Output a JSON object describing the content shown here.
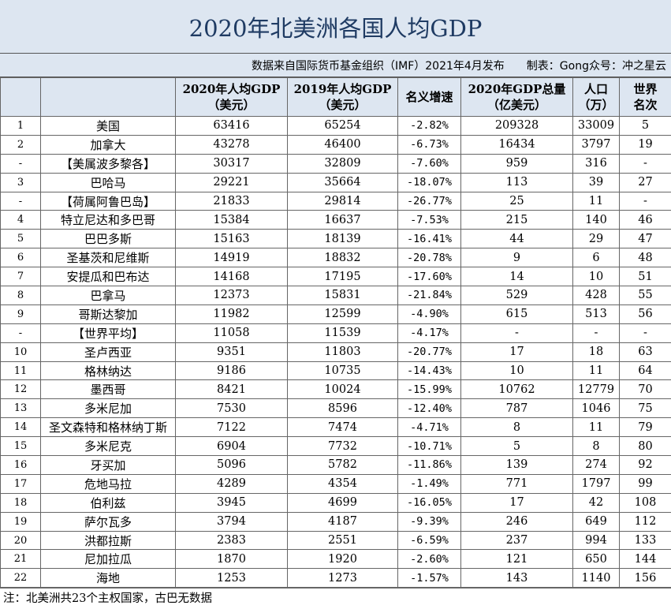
{
  "title": "2020年北美洲各国人均GDP",
  "subtitle": "数据来自国际货币基金组织（IMF）2021年4月发布　　制表：Gong众号：冲之星云",
  "headers": [
    [
      "",
      ""
    ],
    [
      "",
      ""
    ],
    [
      "2020年人均GDP",
      "（美元）"
    ],
    [
      "2019年人均GDP",
      "（美元）"
    ],
    [
      "名义增速",
      ""
    ],
    [
      "2020年GDP总量",
      "（亿美元）"
    ],
    [
      "人口",
      "（万）"
    ],
    [
      "世界",
      "名次"
    ]
  ],
  "rows": [
    [
      "1",
      "美国",
      "63416",
      "65254",
      "-2.82%",
      "209328",
      "33009",
      "5"
    ],
    [
      "2",
      "加拿大",
      "43278",
      "46400",
      "-6.73%",
      "16434",
      "3797",
      "19"
    ],
    [
      "-",
      "【美属波多黎各】",
      "30317",
      "32809",
      "-7.60%",
      "959",
      "316",
      "-"
    ],
    [
      "3",
      "巴哈马",
      "29221",
      "35664",
      "-18.07%",
      "113",
      "39",
      "27"
    ],
    [
      "-",
      "【荷属阿鲁巴岛】",
      "21833",
      "29814",
      "-26.77%",
      "25",
      "11",
      "-"
    ],
    [
      "4",
      "特立尼达和多巴哥",
      "15384",
      "16637",
      "-7.53%",
      "215",
      "140",
      "46"
    ],
    [
      "5",
      "巴巴多斯",
      "15163",
      "18139",
      "-16.41%",
      "44",
      "29",
      "47"
    ],
    [
      "6",
      "圣基茨和尼维斯",
      "14919",
      "18832",
      "-20.78%",
      "9",
      "6",
      "48"
    ],
    [
      "7",
      "安提瓜和巴布达",
      "14168",
      "17195",
      "-17.60%",
      "14",
      "10",
      "51"
    ],
    [
      "8",
      "巴拿马",
      "12373",
      "15831",
      "-21.84%",
      "529",
      "428",
      "55"
    ],
    [
      "9",
      "哥斯达黎加",
      "11982",
      "12599",
      "-4.90%",
      "615",
      "513",
      "56"
    ],
    [
      "-",
      "【世界平均】",
      "11058",
      "11539",
      "-4.17%",
      "-",
      "-",
      "-"
    ],
    [
      "10",
      "圣卢西亚",
      "9351",
      "11803",
      "-20.77%",
      "17",
      "18",
      "63"
    ],
    [
      "11",
      "格林纳达",
      "9186",
      "10735",
      "-14.43%",
      "10",
      "11",
      "64"
    ],
    [
      "12",
      "墨西哥",
      "8421",
      "10024",
      "-15.99%",
      "10762",
      "12779",
      "70"
    ],
    [
      "13",
      "多米尼加",
      "7530",
      "8596",
      "-12.40%",
      "787",
      "1046",
      "75"
    ],
    [
      "14",
      "圣文森特和格林纳丁斯",
      "7122",
      "7474",
      "-4.71%",
      "8",
      "11",
      "79"
    ],
    [
      "15",
      "多米尼克",
      "6904",
      "7732",
      "-10.71%",
      "5",
      "8",
      "80"
    ],
    [
      "16",
      "牙买加",
      "5096",
      "5782",
      "-11.86%",
      "139",
      "274",
      "92"
    ],
    [
      "17",
      "危地马拉",
      "4289",
      "4354",
      "-1.49%",
      "771",
      "1797",
      "99"
    ],
    [
      "18",
      "伯利兹",
      "3945",
      "4699",
      "-16.05%",
      "17",
      "42",
      "108"
    ],
    [
      "19",
      "萨尔瓦多",
      "3794",
      "4187",
      "-9.39%",
      "246",
      "649",
      "112"
    ],
    [
      "20",
      "洪都拉斯",
      "2383",
      "2551",
      "-6.59%",
      "237",
      "994",
      "133"
    ],
    [
      "21",
      "尼加拉瓜",
      "1870",
      "1920",
      "-2.60%",
      "121",
      "650",
      "144"
    ],
    [
      "22",
      "海地",
      "1253",
      "1273",
      "-1.57%",
      "143",
      "1140",
      "156"
    ]
  ],
  "note": "注：北美洲共23个主权国家，古巴无数据"
}
